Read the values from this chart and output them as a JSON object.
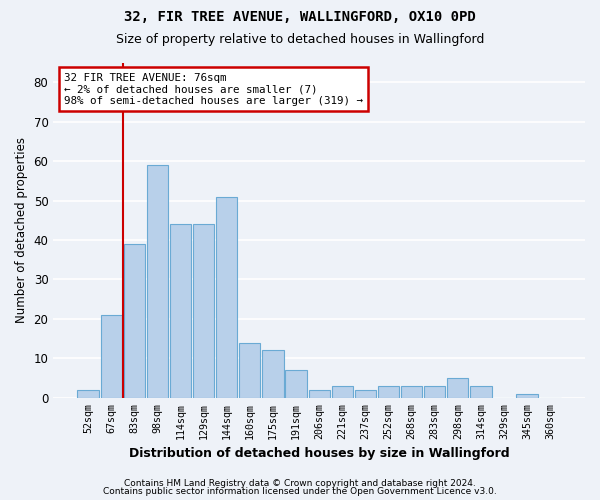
{
  "title": "32, FIR TREE AVENUE, WALLINGFORD, OX10 0PD",
  "subtitle": "Size of property relative to detached houses in Wallingford",
  "xlabel": "Distribution of detached houses by size in Wallingford",
  "ylabel": "Number of detached properties",
  "categories": [
    "52sqm",
    "67sqm",
    "83sqm",
    "98sqm",
    "114sqm",
    "129sqm",
    "144sqm",
    "160sqm",
    "175sqm",
    "191sqm",
    "206sqm",
    "221sqm",
    "237sqm",
    "252sqm",
    "268sqm",
    "283sqm",
    "298sqm",
    "314sqm",
    "329sqm",
    "345sqm",
    "360sqm"
  ],
  "values": [
    2,
    21,
    39,
    59,
    44,
    44,
    51,
    14,
    12,
    7,
    2,
    3,
    2,
    3,
    3,
    3,
    5,
    3,
    0,
    1,
    0
  ],
  "bar_color": "#b8d0ea",
  "bar_edge_color": "#6aaad4",
  "annotation_text": "32 FIR TREE AVENUE: 76sqm\n← 2% of detached houses are smaller (7)\n98% of semi-detached houses are larger (319) →",
  "annotation_box_color": "#ffffff",
  "annotation_box_edge": "#cc0000",
  "vline_color": "#cc0000",
  "footer1": "Contains HM Land Registry data © Crown copyright and database right 2024.",
  "footer2": "Contains public sector information licensed under the Open Government Licence v3.0.",
  "background_color": "#eef2f8",
  "ylim": [
    0,
    85
  ],
  "yticks": [
    0,
    10,
    20,
    30,
    40,
    50,
    60,
    70,
    80
  ]
}
